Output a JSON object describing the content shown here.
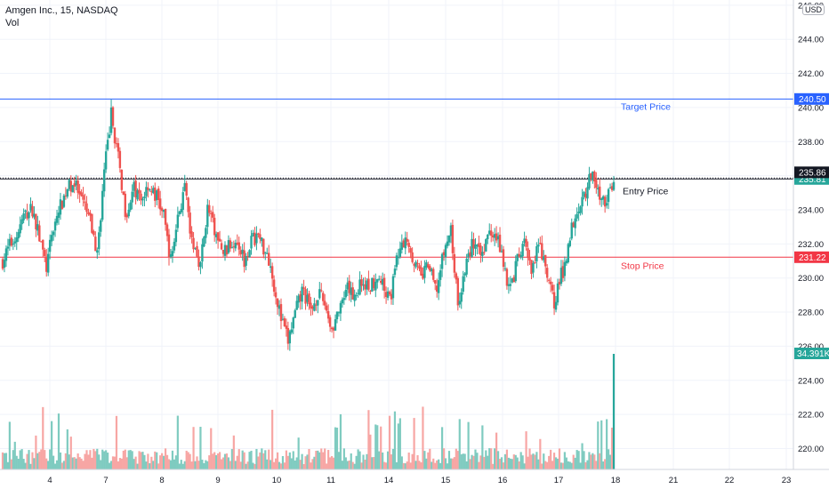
{
  "header": {
    "symbol_line": "Amgen Inc., 15, NASDAQ",
    "volume_label": "Vol",
    "currency": "USD"
  },
  "colors": {
    "up": "#26a69a",
    "down": "#ef5350",
    "up_vol": "#7fcbc0",
    "down_vol": "#f7a6a4",
    "target": "#2962ff",
    "stop": "#f23645",
    "entry": "#131722",
    "last": "#131722",
    "grid": "#f0f3fa"
  },
  "chart_data": {
    "type": "candlestick",
    "x_ticks": [
      "4",
      "7",
      "8",
      "9",
      "10",
      "11",
      "14",
      "15",
      "16",
      "17",
      "18",
      "21",
      "22",
      "23"
    ],
    "y_ticks": [
      220,
      222,
      224,
      226,
      228,
      230,
      232,
      234,
      236,
      238,
      240,
      242,
      244,
      246
    ],
    "y_tick_labels": [
      "220.00",
      "222.00",
      "224.00",
      "226.00",
      "228.00",
      "230.00",
      "232.00",
      "234.00",
      "236.00",
      "238.00",
      "240.00",
      "242.00",
      "244.00",
      "246.00"
    ],
    "ylim": [
      219.4,
      246.2
    ],
    "levels": [
      {
        "name": "Target Price",
        "value": 240.5,
        "label": "240.50",
        "color": "#2962ff"
      },
      {
        "name": "Entry Price",
        "value": 235.81,
        "label": "235.81",
        "color": "#26a69a"
      },
      {
        "name": "Stop Price",
        "value": 231.22,
        "label": "231.22",
        "color": "#f23645"
      }
    ],
    "last_price": {
      "value": 235.86,
      "label": "235.86"
    },
    "volume_last": {
      "label": "34.391K"
    },
    "annotations": [
      "Target Price",
      "Entry Price",
      "Stop Price"
    ],
    "sessions": [
      {
        "day": "3",
        "path": [
          231.0,
          231.9,
          232.5,
          233.6,
          234.0
        ]
      },
      {
        "day": "4",
        "path": [
          234.0,
          232.4,
          230.6,
          233.0,
          234.2,
          235.3,
          235.6,
          234.4
        ]
      },
      {
        "day": "7",
        "path": [
          234.4,
          233.3,
          231.4,
          236.2,
          239.6,
          237.0,
          234.0
        ]
      },
      {
        "day": "7b",
        "path": [
          234.0,
          235.2,
          234.5,
          235.5,
          234.8
        ]
      },
      {
        "day": "8",
        "path": [
          234.8,
          233.6,
          231.0,
          233.6,
          235.2,
          232.0
        ]
      },
      {
        "day": "9",
        "path": [
          232.0,
          230.8,
          234.1,
          232.8,
          231.5,
          231.8,
          232.3
        ]
      },
      {
        "day": "9b",
        "path": [
          232.3,
          231.1,
          232.2,
          232.5,
          231.6
        ]
      },
      {
        "day": "10",
        "path": [
          231.6,
          229.6,
          227.6,
          226.3,
          227.9,
          229.2
        ]
      },
      {
        "day": "10b",
        "path": [
          229.2,
          228.0,
          229.1,
          228.5,
          227.0,
          228.1
        ]
      },
      {
        "day": "11",
        "path": [
          228.1,
          229.3,
          229.0,
          229.8,
          229.5
        ]
      },
      {
        "day": "11b",
        "path": [
          229.5,
          230.2,
          229.4,
          229.1,
          231.6
        ]
      },
      {
        "day": "14",
        "path": [
          231.6,
          232.4,
          231.0,
          230.0,
          230.8,
          229.4
        ]
      },
      {
        "day": "15",
        "path": [
          229.4,
          231.5,
          232.8,
          228.4,
          230.5,
          232.0
        ]
      },
      {
        "day": "15b",
        "path": [
          232.0,
          231.2,
          232.5,
          232.9,
          231.5,
          229.4
        ]
      },
      {
        "day": "16",
        "path": [
          229.4,
          231.0,
          232.0,
          230.3,
          231.8
        ]
      },
      {
        "day": "16b",
        "path": [
          231.8,
          230.0,
          228.6,
          230.2
        ]
      },
      {
        "day": "17",
        "path": [
          230.2,
          232.6,
          234.1,
          234.8,
          236.1,
          235.0
        ]
      },
      {
        "day": "17b",
        "path": [
          235.0,
          234.4,
          235.86
        ]
      }
    ]
  }
}
